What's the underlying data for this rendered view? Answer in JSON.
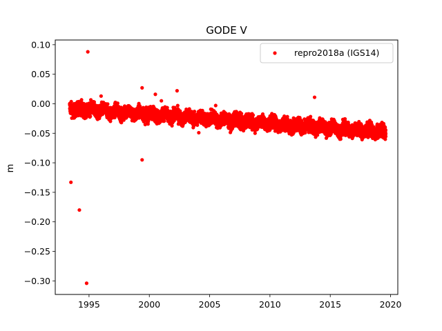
{
  "chart_data": {
    "type": "scatter",
    "title": "GODE V",
    "xlabel": "",
    "ylabel": "m",
    "xlim": [
      1992.2,
      2020.6
    ],
    "ylim": [
      -0.323,
      0.108
    ],
    "x_ticks": [
      1995,
      2000,
      2005,
      2010,
      2015,
      2020
    ],
    "y_ticks": [
      0.1,
      0.05,
      0.0,
      -0.05,
      -0.1,
      -0.15,
      -0.2,
      -0.25,
      -0.3
    ],
    "x_tick_labels": [
      "1995",
      "2000",
      "2005",
      "2010",
      "2015",
      "2020"
    ],
    "y_tick_labels": [
      "0.10",
      "0.05",
      "0.00",
      "−0.05",
      "−0.10",
      "−0.15",
      "−0.20",
      "−0.25",
      "−0.30"
    ],
    "grid": false,
    "legend_position": "top-right",
    "series": [
      {
        "name": "repro2018a (IGS14)",
        "color": "#ff0000",
        "marker": "circle",
        "trend": {
          "x_start": 1993.4,
          "x_end": 2019.6,
          "y_start": -0.008,
          "y_end": -0.048,
          "spread": 0.009,
          "density_per_year": 230
        },
        "outliers": [
          {
            "x": 1994.9,
            "y": 0.088
          },
          {
            "x": 1993.5,
            "y": -0.133
          },
          {
            "x": 1994.2,
            "y": -0.18
          },
          {
            "x": 1994.8,
            "y": -0.304
          },
          {
            "x": 1999.4,
            "y": -0.095
          },
          {
            "x": 1999.4,
            "y": 0.027
          },
          {
            "x": 2000.5,
            "y": 0.016
          },
          {
            "x": 2002.3,
            "y": 0.022
          },
          {
            "x": 2013.7,
            "y": 0.011
          },
          {
            "x": 1996.0,
            "y": 0.013
          },
          {
            "x": 2001.0,
            "y": 0.005
          },
          {
            "x": 2005.5,
            "y": -0.003
          },
          {
            "x": 2004.1,
            "y": -0.049
          },
          {
            "x": 2015.8,
            "y": -0.06
          }
        ]
      }
    ]
  }
}
